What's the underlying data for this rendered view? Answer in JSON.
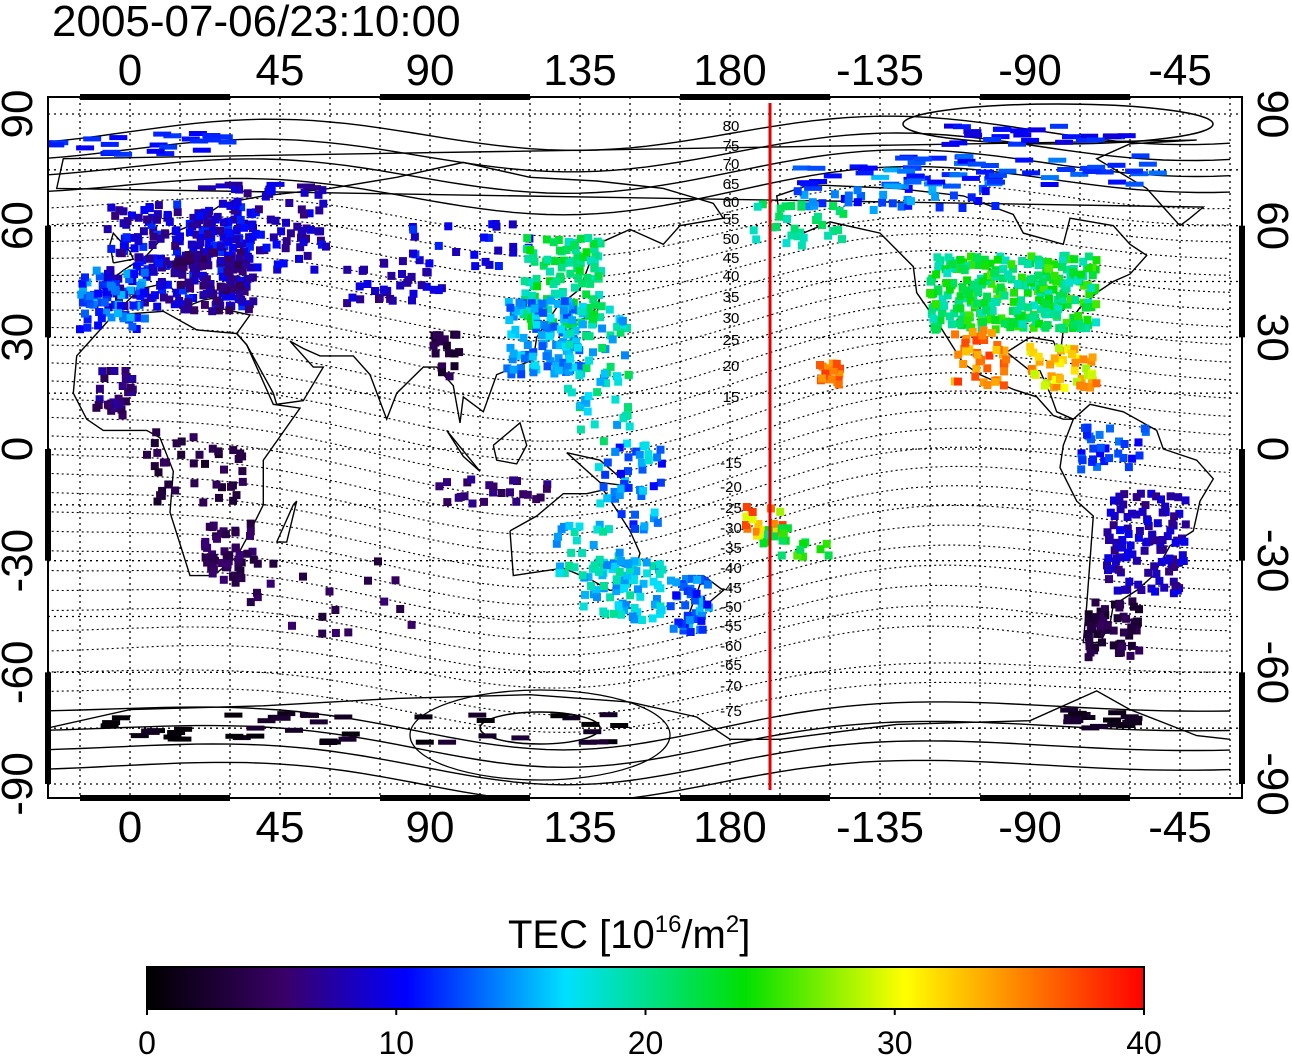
{
  "title": "2005-07-06/23:10:00",
  "map": {
    "lon_ticks": [
      "0",
      "45",
      "90",
      "135",
      "180",
      "-135",
      "-90",
      "-45"
    ],
    "lat_ticks": [
      "90",
      "60",
      "30",
      "0",
      "-30",
      "-60",
      "-90"
    ],
    "dip_lat_labels_north": [
      "80",
      "75",
      "70",
      "65",
      "60",
      "55",
      "50",
      "45",
      "40",
      "35",
      "30",
      "25",
      "20",
      "15"
    ],
    "dip_lat_labels_south": [
      "-15",
      "-20",
      "-25",
      "-30",
      "-35",
      "-40",
      "-45",
      "-50",
      "-55",
      "-60",
      "-65",
      "-70",
      "-75"
    ],
    "terminator_color": "#e00000"
  },
  "colorbar": {
    "label_main": "TEC  [10",
    "label_sup1": "16",
    "label_mid": "/m",
    "label_sup2": "2",
    "label_end": "]",
    "ticks": [
      "0",
      "10",
      "20",
      "30",
      "40"
    ]
  },
  "chart_data": {
    "type": "heatmap",
    "title": "2005-07-06/23:10:00",
    "colorbar_label": "TEC [10^16/m^2]",
    "colorbar_range": [
      0,
      40
    ],
    "colormap": [
      "#000000",
      "#3a006a",
      "#0000ff",
      "#00e0ff",
      "#00e000",
      "#ffff00",
      "#ff7f00",
      "#ff0000"
    ],
    "lon_range": [
      -25,
      325
    ],
    "lat_range": [
      -90,
      90
    ],
    "grid": true,
    "terminator_longitude": -168
  }
}
